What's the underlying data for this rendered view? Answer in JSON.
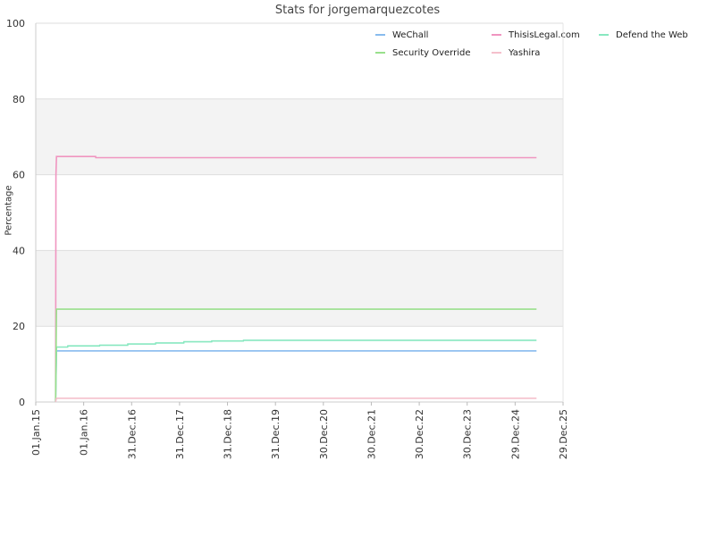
{
  "chart_data": {
    "type": "line",
    "title": "Stats for jorgemarquezcotes",
    "ylabel": "Percentage",
    "xlabel": "",
    "ylim": [
      0,
      100
    ],
    "yticks": [
      "0",
      "20",
      "40",
      "60",
      "80",
      "100"
    ],
    "xlim": [
      "2015-01-01",
      "2025-12-29"
    ],
    "xticks": [
      {
        "label": "01.Jan.15",
        "date": "2015-01-01"
      },
      {
        "label": "01.Jan.16",
        "date": "2016-01-01"
      },
      {
        "label": "31.Dec.16",
        "date": "2016-12-31"
      },
      {
        "label": "31.Dec.17",
        "date": "2017-12-31"
      },
      {
        "label": "31.Dec.18",
        "date": "2018-12-31"
      },
      {
        "label": "31.Dec.19",
        "date": "2019-12-31"
      },
      {
        "label": "30.Dec.20",
        "date": "2020-12-30"
      },
      {
        "label": "30.Dec.21",
        "date": "2021-12-30"
      },
      {
        "label": "30.Dec.22",
        "date": "2022-12-30"
      },
      {
        "label": "30.Dec.23",
        "date": "2023-12-30"
      },
      {
        "label": "29.Dec.24",
        "date": "2024-12-29"
      },
      {
        "label": "29.Dec.25",
        "date": "2025-12-29"
      }
    ],
    "grid": true,
    "legend": "top-right",
    "series": [
      {
        "name": "WeChall",
        "color": "#88bbee",
        "points": [
          [
            "2015-06-01",
            0
          ],
          [
            "2015-06-08",
            13.5
          ],
          [
            "2025-06-10",
            13.5
          ]
        ]
      },
      {
        "name": "ThisisLegal.com",
        "color": "#f095c0",
        "points": [
          [
            "2015-06-01",
            0
          ],
          [
            "2015-06-04",
            60
          ],
          [
            "2015-06-08",
            64.8
          ],
          [
            "2016-04-01",
            64.8
          ],
          [
            "2016-04-02",
            64.5
          ],
          [
            "2025-06-10",
            64.5
          ]
        ]
      },
      {
        "name": "Defend the Web",
        "color": "#88e8c0",
        "points": [
          [
            "2015-06-01",
            0
          ],
          [
            "2015-06-08",
            14.5
          ],
          [
            "2015-09-01",
            14.5
          ],
          [
            "2015-09-02",
            14.8
          ],
          [
            "2016-05-01",
            14.8
          ],
          [
            "2016-05-02",
            15.0
          ],
          [
            "2016-12-01",
            15.0
          ],
          [
            "2016-12-02",
            15.3
          ],
          [
            "2017-07-01",
            15.3
          ],
          [
            "2017-07-02",
            15.6
          ],
          [
            "2018-02-01",
            15.6
          ],
          [
            "2018-02-02",
            15.9
          ],
          [
            "2018-09-01",
            15.9
          ],
          [
            "2018-09-02",
            16.1
          ],
          [
            "2019-05-01",
            16.1
          ],
          [
            "2019-05-02",
            16.3
          ],
          [
            "2025-06-10",
            16.3
          ]
        ]
      },
      {
        "name": "Security Override",
        "color": "#99e08c",
        "points": [
          [
            "2015-06-01",
            0
          ],
          [
            "2015-06-08",
            24.5
          ],
          [
            "2025-06-10",
            24.5
          ]
        ]
      },
      {
        "name": "Yashira",
        "color": "#f5c0cc",
        "points": [
          [
            "2015-06-01",
            0
          ],
          [
            "2015-06-08",
            1.0
          ],
          [
            "2025-06-10",
            1.0
          ]
        ]
      }
    ]
  }
}
